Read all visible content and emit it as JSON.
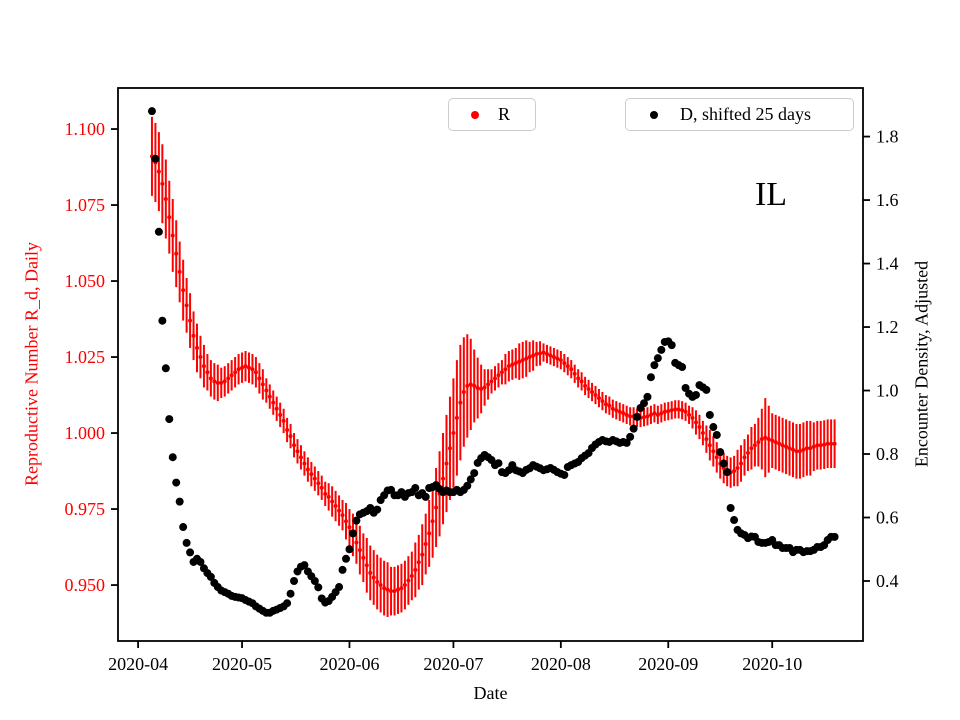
{
  "figure": {
    "state_label": "IL",
    "xlabel": "Date",
    "ylabel_left": "Reproductive Number R_d, Daily",
    "ylabel_right": "Encounter Density, Adjusted",
    "colors": {
      "r_series": "#ff0000",
      "d_series": "#000000",
      "left_axis_text": "#ff0000",
      "right_axis_text": "#000000",
      "spine": "#000000",
      "legend_border": "#cccccc",
      "background": "#ffffff"
    }
  },
  "legends": [
    {
      "label": "R",
      "marker": "red-dot-marker",
      "marker_color": "#ff0000"
    },
    {
      "label": "D, shifted 25 days",
      "marker": "black-dot-marker",
      "marker_color": "#000000"
    }
  ],
  "chart_data": {
    "type": "scatter",
    "title": "",
    "xlabel": "Date",
    "annotation": "IL",
    "grid": false,
    "legend_position": "top",
    "start_date": "2020-04-05",
    "cadence": "daily",
    "xlim_days_from_2020_04_01": [
      -5.8,
      209.2
    ],
    "x_ticks": {
      "days_from_2020_04_01": [
        0,
        30,
        61,
        91,
        122,
        153,
        183
      ],
      "labels": [
        "2020-04",
        "2020-05",
        "2020-06",
        "2020-07",
        "2020-08",
        "2020-09",
        "2020-10"
      ]
    },
    "left_axis": {
      "label": "Reproductive Number R_d, Daily",
      "color": "#ff0000",
      "ylim": [
        0.9316,
        1.1135
      ],
      "ticks": [
        1.1,
        1.075,
        1.05,
        1.025,
        1.0,
        0.975,
        0.95
      ],
      "tick_labels": [
        "1.100",
        "1.075",
        "1.050",
        "1.025",
        "1.000",
        "0.975",
        "0.950"
      ]
    },
    "right_axis": {
      "label": "Encounter Density, Adjusted",
      "color": "#000000",
      "ylim": [
        0.211,
        1.953
      ],
      "ticks": [
        1.8,
        1.6,
        1.4,
        1.2,
        1.0,
        0.8,
        0.6,
        0.4
      ],
      "tick_labels": [
        "1.8",
        "1.6",
        "1.4",
        "1.2",
        "1.0",
        "0.8",
        "0.6",
        "0.4"
      ]
    },
    "series": [
      {
        "name": "R",
        "axis": "left",
        "style": "errorbar",
        "color": "#ff0000",
        "values": [
          1.091,
          1.089,
          1.086,
          1.082,
          1.077,
          1.071,
          1.065,
          1.059,
          1.053,
          1.047,
          1.042,
          1.037,
          1.032,
          1.028,
          1.025,
          1.022,
          1.02,
          1.018,
          1.017,
          1.0165,
          1.0165,
          1.017,
          1.018,
          1.019,
          1.02,
          1.021,
          1.0215,
          1.022,
          1.0215,
          1.021,
          1.02,
          1.018,
          1.016,
          1.014,
          1.012,
          1.01,
          1.008,
          1.006,
          1.004,
          1.001,
          0.999,
          0.996,
          0.994,
          0.992,
          0.99,
          0.988,
          0.9865,
          0.985,
          0.9835,
          0.982,
          0.98,
          0.979,
          0.9775,
          0.976,
          0.9745,
          0.973,
          0.971,
          0.969,
          0.9665,
          0.964,
          0.9615,
          0.959,
          0.9565,
          0.954,
          0.9525,
          0.951,
          0.95,
          0.949,
          0.9485,
          0.948,
          0.948,
          0.9485,
          0.949,
          0.95,
          0.9515,
          0.953,
          0.955,
          0.9575,
          0.96,
          0.9635,
          0.967,
          0.971,
          0.9755,
          0.98,
          0.985,
          0.99,
          0.995,
          1.0,
          1.005,
          1.01,
          1.0135,
          1.0155,
          1.016,
          1.0155,
          1.0148,
          1.0145,
          1.015,
          1.016,
          1.017,
          1.018,
          1.019,
          1.02,
          1.021,
          1.022,
          1.0225,
          1.023,
          1.0235,
          1.024,
          1.0245,
          1.025,
          1.0255,
          1.026,
          1.0262,
          1.0265,
          1.026,
          1.0255,
          1.025,
          1.0245,
          1.024,
          1.023,
          1.022,
          1.021,
          1.0195,
          1.018,
          1.017,
          1.0155,
          1.0145,
          1.0135,
          1.0125,
          1.0115,
          1.0105,
          1.0095,
          1.009,
          1.008,
          1.0075,
          1.007,
          1.0065,
          1.006,
          1.0055,
          1.0055,
          1.005,
          1.005,
          1.0052,
          1.0055,
          1.006,
          1.0065,
          1.006,
          1.0065,
          1.007,
          1.0072,
          1.0075,
          1.0078,
          1.0078,
          1.0075,
          1.007,
          1.006,
          1.005,
          1.0035,
          1.002,
          1.0,
          0.998,
          0.996,
          0.994,
          0.992,
          0.99,
          0.9885,
          0.9875,
          0.987,
          0.9875,
          0.9885,
          0.99,
          0.992,
          0.9935,
          0.995,
          0.996,
          0.997,
          0.998,
          0.9985,
          0.998,
          0.9975,
          0.997,
          0.9965,
          0.996,
          0.9955,
          0.995,
          0.9945,
          0.994,
          0.994,
          0.9945,
          0.995,
          0.995,
          0.9955,
          0.996,
          0.996,
          0.9962,
          0.9965,
          0.9965,
          0.9965
        ],
        "errors": [
          0.013,
          0.013,
          0.013,
          0.013,
          0.013,
          0.012,
          0.012,
          0.011,
          0.01,
          0.01,
          0.009,
          0.009,
          0.008,
          0.008,
          0.007,
          0.007,
          0.006,
          0.006,
          0.006,
          0.006,
          0.005,
          0.005,
          0.005,
          0.005,
          0.005,
          0.005,
          0.005,
          0.005,
          0.005,
          0.005,
          0.005,
          0.005,
          0.005,
          0.004,
          0.004,
          0.004,
          0.004,
          0.004,
          0.004,
          0.004,
          0.004,
          0.004,
          0.004,
          0.004,
          0.004,
          0.004,
          0.004,
          0.004,
          0.004,
          0.004,
          0.004,
          0.0045,
          0.005,
          0.005,
          0.005,
          0.005,
          0.006,
          0.006,
          0.007,
          0.007,
          0.008,
          0.008,
          0.009,
          0.009,
          0.009,
          0.009,
          0.009,
          0.009,
          0.009,
          0.008,
          0.008,
          0.008,
          0.008,
          0.008,
          0.008,
          0.008,
          0.009,
          0.009,
          0.01,
          0.01,
          0.011,
          0.012,
          0.013,
          0.014,
          0.015,
          0.016,
          0.017,
          0.018,
          0.019,
          0.019,
          0.018,
          0.017,
          0.015,
          0.012,
          0.01,
          0.008,
          0.006,
          0.005,
          0.004,
          0.004,
          0.004,
          0.004,
          0.005,
          0.005,
          0.005,
          0.005,
          0.006,
          0.006,
          0.006,
          0.005,
          0.005,
          0.004,
          0.004,
          0.003,
          0.003,
          0.003,
          0.003,
          0.003,
          0.003,
          0.003,
          0.003,
          0.003,
          0.003,
          0.003,
          0.003,
          0.003,
          0.003,
          0.003,
          0.003,
          0.003,
          0.003,
          0.003,
          0.003,
          0.003,
          0.003,
          0.003,
          0.003,
          0.003,
          0.003,
          0.003,
          0.003,
          0.003,
          0.003,
          0.003,
          0.003,
          0.003,
          0.003,
          0.003,
          0.003,
          0.003,
          0.003,
          0.003,
          0.003,
          0.003,
          0.003,
          0.003,
          0.0035,
          0.004,
          0.004,
          0.004,
          0.0045,
          0.005,
          0.005,
          0.005,
          0.005,
          0.005,
          0.005,
          0.005,
          0.005,
          0.006,
          0.006,
          0.006,
          0.006,
          0.007,
          0.007,
          0.008,
          0.01,
          0.013,
          0.011,
          0.009,
          0.009,
          0.009,
          0.009,
          0.009,
          0.009,
          0.009,
          0.009,
          0.009,
          0.009,
          0.009,
          0.009,
          0.008,
          0.008,
          0.008,
          0.008,
          0.008,
          0.008,
          0.008
        ]
      },
      {
        "name": "D, shifted 25 days",
        "axis": "right",
        "style": "dots",
        "color": "#000000",
        "values": [
          1.88,
          1.73,
          1.5,
          1.22,
          1.07,
          0.91,
          0.79,
          0.71,
          0.65,
          0.57,
          0.52,
          0.49,
          0.46,
          0.47,
          0.46,
          0.44,
          0.425,
          0.413,
          0.394,
          0.381,
          0.37,
          0.365,
          0.36,
          0.353,
          0.35,
          0.348,
          0.346,
          0.34,
          0.335,
          0.33,
          0.32,
          0.313,
          0.306,
          0.3,
          0.3,
          0.306,
          0.31,
          0.315,
          0.32,
          0.33,
          0.36,
          0.4,
          0.43,
          0.445,
          0.45,
          0.43,
          0.415,
          0.4,
          0.38,
          0.345,
          0.332,
          0.337,
          0.35,
          0.365,
          0.381,
          0.435,
          0.47,
          0.5,
          0.55,
          0.59,
          0.61,
          0.615,
          0.62,
          0.63,
          0.615,
          0.625,
          0.655,
          0.67,
          0.685,
          0.687,
          0.67,
          0.67,
          0.68,
          0.665,
          0.677,
          0.68,
          0.693,
          0.67,
          0.677,
          0.665,
          0.693,
          0.696,
          0.702,
          0.69,
          0.68,
          0.685,
          0.68,
          0.68,
          0.687,
          0.68,
          0.687,
          0.7,
          0.72,
          0.74,
          0.772,
          0.787,
          0.797,
          0.79,
          0.781,
          0.765,
          0.771,
          0.743,
          0.74,
          0.749,
          0.765,
          0.749,
          0.745,
          0.74,
          0.75,
          0.755,
          0.765,
          0.76,
          0.755,
          0.749,
          0.752,
          0.756,
          0.75,
          0.743,
          0.738,
          0.734,
          0.759,
          0.765,
          0.77,
          0.775,
          0.787,
          0.795,
          0.803,
          0.819,
          0.83,
          0.838,
          0.844,
          0.84,
          0.838,
          0.844,
          0.84,
          0.835,
          0.838,
          0.835,
          0.854,
          0.88,
          0.917,
          0.945,
          0.96,
          0.98,
          1.042,
          1.08,
          1.102,
          1.128,
          1.153,
          1.155,
          1.143,
          1.087,
          1.08,
          1.074,
          1.008,
          0.99,
          0.98,
          0.986,
          1.017,
          1.01,
          1.002,
          0.923,
          0.885,
          0.86,
          0.806,
          0.77,
          0.743,
          0.63,
          0.592,
          0.561,
          0.55,
          0.545,
          0.535,
          0.54,
          0.539,
          0.523,
          0.52,
          0.52,
          0.523,
          0.529,
          0.513,
          0.513,
          0.504,
          0.504,
          0.504,
          0.491,
          0.498,
          0.498,
          0.491,
          0.494,
          0.494,
          0.498,
          0.507,
          0.507,
          0.513,
          0.529,
          0.539,
          0.539
        ]
      }
    ]
  }
}
